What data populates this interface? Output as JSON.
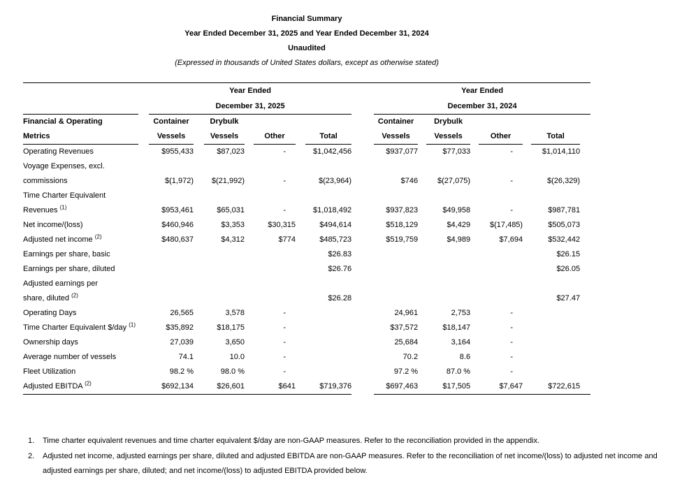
{
  "title": {
    "line1": "Financial Summary",
    "line2": "Year Ended December 31, 2025 and Year Ended December 31, 2024",
    "line3": "Unaudited",
    "line4": "(Expressed in thousands of United States dollars, except as otherwise stated)"
  },
  "table": {
    "row_header": {
      "line1": "Financial & Operating",
      "line2": "Metrics"
    },
    "groups": [
      {
        "period_line1": "Year Ended",
        "period_line2": "December 31, 2025",
        "columns": [
          {
            "line1": "Container",
            "line2": "Vessels"
          },
          {
            "line1": "Drybulk",
            "line2": "Vessels"
          },
          {
            "line1": "",
            "line2": "Other"
          },
          {
            "line1": "",
            "line2": "Total"
          }
        ]
      },
      {
        "period_line1": "Year Ended",
        "period_line2": "December 31, 2024",
        "columns": [
          {
            "line1": "Container",
            "line2": "Vessels"
          },
          {
            "line1": "Drybulk",
            "line2": "Vessels"
          },
          {
            "line1": "",
            "line2": "Other"
          },
          {
            "line1": "",
            "line2": "Total"
          }
        ]
      }
    ],
    "rows": [
      {
        "lines": [
          "Operating Revenues"
        ],
        "sup": "",
        "values": [
          "$955,433",
          "$87,023",
          "-",
          "$1,042,456",
          "$937,077",
          "$77,033",
          "-",
          "$1,014,110"
        ]
      },
      {
        "lines": [
          "Voyage Expenses, excl.",
          "commissions"
        ],
        "sup": "",
        "values": [
          "$(1,972)",
          "$(21,992)",
          "-",
          "$(23,964)",
          "$746",
          "$(27,075)",
          "-",
          "$(26,329)"
        ]
      },
      {
        "lines": [
          "Time Charter Equivalent",
          "Revenues"
        ],
        "sup": "(1)",
        "values": [
          "$953,461",
          "$65,031",
          "-",
          "$1,018,492",
          "$937,823",
          "$49,958",
          "-",
          "$987,781"
        ]
      },
      {
        "lines": [
          "Net income/(loss)"
        ],
        "sup": "",
        "values": [
          "$460,946",
          "$3,353",
          "$30,315",
          "$494,614",
          "$518,129",
          "$4,429",
          "$(17,485)",
          "$505,073"
        ]
      },
      {
        "lines": [
          "Adjusted net income"
        ],
        "sup": "(2)",
        "values": [
          "$480,637",
          "$4,312",
          "$774",
          "$485,723",
          "$519,759",
          "$4,989",
          "$7,694",
          "$532,442"
        ]
      },
      {
        "lines": [
          "Earnings per share, basic"
        ],
        "sup": "",
        "values": [
          "",
          "",
          "",
          "$26.83",
          "",
          "",
          "",
          "$26.15"
        ]
      },
      {
        "lines": [
          "Earnings per share, diluted"
        ],
        "sup": "",
        "values": [
          "",
          "",
          "",
          "$26.76",
          "",
          "",
          "",
          "$26.05"
        ]
      },
      {
        "lines": [
          "Adjusted earnings per",
          "share, diluted"
        ],
        "sup": "(2)",
        "values": [
          "",
          "",
          "",
          "$26.28",
          "",
          "",
          "",
          "$27.47"
        ]
      },
      {
        "lines": [
          "Operating Days"
        ],
        "sup": "",
        "values": [
          "26,565",
          "3,578",
          "-",
          "",
          "24,961",
          "2,753",
          "-",
          ""
        ]
      },
      {
        "lines": [
          "Time Charter Equivalent $/day"
        ],
        "sup": "(1)",
        "values": [
          "$35,892",
          "$18,175",
          "-",
          "",
          "$37,572",
          "$18,147",
          "-",
          ""
        ]
      },
      {
        "lines": [
          "Ownership days"
        ],
        "sup": "",
        "values": [
          "27,039",
          "3,650",
          "-",
          "",
          "25,684",
          "3,164",
          "-",
          ""
        ]
      },
      {
        "lines": [
          "Average number of vessels"
        ],
        "sup": "",
        "values": [
          "74.1",
          "10.0",
          "-",
          "",
          "70.2",
          "8.6",
          "-",
          ""
        ]
      },
      {
        "lines": [
          "Fleet Utilization"
        ],
        "sup": "",
        "values": [
          "98.2 %",
          "98.0 %",
          "-",
          "",
          "97.2 %",
          "87.0 %",
          "-",
          ""
        ]
      },
      {
        "lines": [
          "Adjusted EBITDA"
        ],
        "sup": "(2)",
        "values": [
          "$692,134",
          "$26,601",
          "$641",
          "$719,376",
          "$697,463",
          "$17,505",
          "$7,647",
          "$722,615"
        ]
      }
    ]
  },
  "footnotes": [
    {
      "number": "1.",
      "text": "Time charter equivalent revenues and time charter equivalent $/day are non-GAAP measures. Refer to the reconciliation provided in the appendix."
    },
    {
      "number": "2.",
      "text": "Adjusted net income, adjusted earnings per share, diluted and adjusted EBITDA are non-GAAP measures. Refer to the reconciliation of net income/(loss) to adjusted net income and adjusted earnings per share, diluted; and net income/(loss) to adjusted EBITDA provided below."
    }
  ],
  "colors": {
    "text": "#000000",
    "background": "#ffffff",
    "rule": "#000000"
  }
}
